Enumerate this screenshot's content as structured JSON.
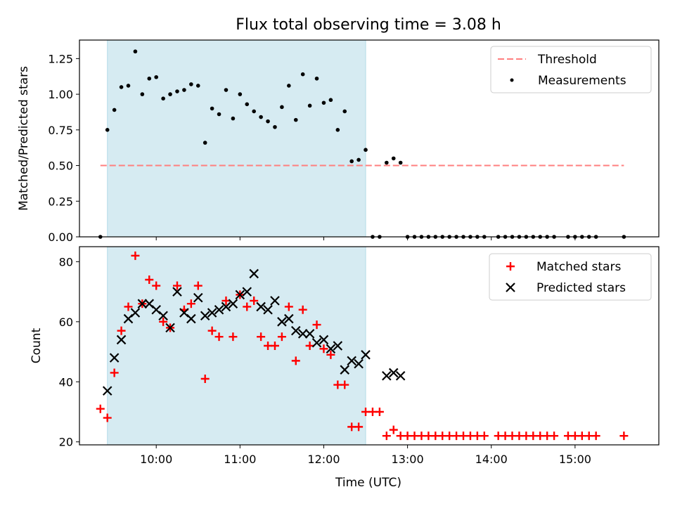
{
  "title": "Flux total observing time = 3.08 h",
  "colors": {
    "shade": "#add8e6",
    "threshold": "#ff7f7f",
    "measurement": "#000000",
    "matched": "#ff0000",
    "predicted": "#000000"
  },
  "chart_data": [
    {
      "type": "scatter",
      "ylabel": "Matched/Predicted stars",
      "ylim": [
        0,
        1.38
      ],
      "y_ticks": [
        "0.00",
        "0.25",
        "0.50",
        "0.75",
        "1.00",
        "1.25"
      ],
      "shaded_span": [
        "09:25",
        "12:30"
      ],
      "legend": {
        "placement": "top-right",
        "entries": [
          "Threshold",
          "Measurements"
        ]
      },
      "threshold": {
        "name": "Threshold",
        "value": 0.5,
        "x_range": [
          "09:20",
          "15:35"
        ]
      },
      "series": [
        {
          "name": "Measurements",
          "points": [
            [
              "09:20",
              0.0
            ],
            [
              "09:25",
              0.75
            ],
            [
              "09:30",
              0.89
            ],
            [
              "09:35",
              1.05
            ],
            [
              "09:40",
              1.06
            ],
            [
              "09:45",
              1.3
            ],
            [
              "09:50",
              1.0
            ],
            [
              "09:55",
              1.11
            ],
            [
              "10:00",
              1.12
            ],
            [
              "10:05",
              0.97
            ],
            [
              "10:10",
              1.0
            ],
            [
              "10:15",
              1.02
            ],
            [
              "10:20",
              1.03
            ],
            [
              "10:25",
              1.07
            ],
            [
              "10:30",
              1.06
            ],
            [
              "10:35",
              0.66
            ],
            [
              "10:40",
              0.9
            ],
            [
              "10:45",
              0.86
            ],
            [
              "10:50",
              1.03
            ],
            [
              "10:55",
              0.83
            ],
            [
              "11:00",
              1.0
            ],
            [
              "11:05",
              0.93
            ],
            [
              "11:10",
              0.88
            ],
            [
              "11:15",
              0.84
            ],
            [
              "11:20",
              0.81
            ],
            [
              "11:25",
              0.77
            ],
            [
              "11:30",
              0.91
            ],
            [
              "11:35",
              1.06
            ],
            [
              "11:40",
              0.82
            ],
            [
              "11:45",
              1.14
            ],
            [
              "11:50",
              0.92
            ],
            [
              "11:55",
              1.11
            ],
            [
              "12:00",
              0.94
            ],
            [
              "12:05",
              0.96
            ],
            [
              "12:10",
              0.75
            ],
            [
              "12:15",
              0.88
            ],
            [
              "12:20",
              0.53
            ],
            [
              "12:25",
              0.54
            ],
            [
              "12:30",
              0.61
            ],
            [
              "12:35",
              0.0
            ],
            [
              "12:40",
              0.0
            ],
            [
              "12:45",
              0.52
            ],
            [
              "12:50",
              0.55
            ],
            [
              "12:55",
              0.52
            ],
            [
              "13:00",
              0.0
            ],
            [
              "13:05",
              0.0
            ],
            [
              "13:10",
              0.0
            ],
            [
              "13:15",
              0.0
            ],
            [
              "13:20",
              0.0
            ],
            [
              "13:25",
              0.0
            ],
            [
              "13:30",
              0.0
            ],
            [
              "13:35",
              0.0
            ],
            [
              "13:40",
              0.0
            ],
            [
              "13:45",
              0.0
            ],
            [
              "13:50",
              0.0
            ],
            [
              "13:55",
              0.0
            ],
            [
              "14:05",
              0.0
            ],
            [
              "14:10",
              0.0
            ],
            [
              "14:15",
              0.0
            ],
            [
              "14:20",
              0.0
            ],
            [
              "14:25",
              0.0
            ],
            [
              "14:30",
              0.0
            ],
            [
              "14:35",
              0.0
            ],
            [
              "14:40",
              0.0
            ],
            [
              "14:45",
              0.0
            ],
            [
              "14:55",
              0.0
            ],
            [
              "15:00",
              0.0
            ],
            [
              "15:05",
              0.0
            ],
            [
              "15:10",
              0.0
            ],
            [
              "15:15",
              0.0
            ],
            [
              "15:35",
              0.0
            ]
          ]
        }
      ]
    },
    {
      "type": "scatter",
      "xlabel": "Time (UTC)",
      "ylabel": "Count",
      "ylim": [
        19,
        85
      ],
      "y_ticks": [
        "20",
        "40",
        "60",
        "80"
      ],
      "x_ticks": [
        "10:00",
        "11:00",
        "12:00",
        "13:00",
        "14:00",
        "15:00"
      ],
      "x_range": [
        "09:05",
        "16:00"
      ],
      "shaded_span": [
        "09:25",
        "12:30"
      ],
      "legend": {
        "placement": "top-right",
        "entries": [
          "Matched stars",
          "Predicted stars"
        ]
      },
      "series": [
        {
          "name": "Matched stars",
          "marker": "plus",
          "points": [
            [
              "09:20",
              31
            ],
            [
              "09:25",
              28
            ],
            [
              "09:30",
              43
            ],
            [
              "09:35",
              57
            ],
            [
              "09:40",
              65
            ],
            [
              "09:45",
              82
            ],
            [
              "09:50",
              66
            ],
            [
              "09:55",
              74
            ],
            [
              "10:00",
              72
            ],
            [
              "10:05",
              60
            ],
            [
              "10:10",
              58
            ],
            [
              "10:15",
              72
            ],
            [
              "10:20",
              64
            ],
            [
              "10:25",
              66
            ],
            [
              "10:30",
              72
            ],
            [
              "10:35",
              41
            ],
            [
              "10:40",
              57
            ],
            [
              "10:45",
              55
            ],
            [
              "10:50",
              67
            ],
            [
              "10:55",
              55
            ],
            [
              "11:00",
              69
            ],
            [
              "11:05",
              65
            ],
            [
              "11:10",
              67
            ],
            [
              "11:15",
              55
            ],
            [
              "11:20",
              52
            ],
            [
              "11:25",
              52
            ],
            [
              "11:30",
              55
            ],
            [
              "11:35",
              65
            ],
            [
              "11:40",
              47
            ],
            [
              "11:45",
              64
            ],
            [
              "11:50",
              52
            ],
            [
              "11:55",
              59
            ],
            [
              "12:00",
              51
            ],
            [
              "12:05",
              49
            ],
            [
              "12:10",
              39
            ],
            [
              "12:15",
              39
            ],
            [
              "12:20",
              25
            ],
            [
              "12:25",
              25
            ],
            [
              "12:30",
              30
            ],
            [
              "12:35",
              30
            ],
            [
              "12:40",
              30
            ],
            [
              "12:45",
              22
            ],
            [
              "12:50",
              24
            ],
            [
              "12:55",
              22
            ],
            [
              "13:00",
              22
            ],
            [
              "13:05",
              22
            ],
            [
              "13:10",
              22
            ],
            [
              "13:15",
              22
            ],
            [
              "13:20",
              22
            ],
            [
              "13:25",
              22
            ],
            [
              "13:30",
              22
            ],
            [
              "13:35",
              22
            ],
            [
              "13:40",
              22
            ],
            [
              "13:45",
              22
            ],
            [
              "13:50",
              22
            ],
            [
              "13:55",
              22
            ],
            [
              "14:05",
              22
            ],
            [
              "14:10",
              22
            ],
            [
              "14:15",
              22
            ],
            [
              "14:20",
              22
            ],
            [
              "14:25",
              22
            ],
            [
              "14:30",
              22
            ],
            [
              "14:35",
              22
            ],
            [
              "14:40",
              22
            ],
            [
              "14:45",
              22
            ],
            [
              "14:55",
              22
            ],
            [
              "15:00",
              22
            ],
            [
              "15:05",
              22
            ],
            [
              "15:10",
              22
            ],
            [
              "15:15",
              22
            ],
            [
              "15:35",
              22
            ]
          ]
        },
        {
          "name": "Predicted stars",
          "marker": "x",
          "points": [
            [
              "09:25",
              37
            ],
            [
              "09:30",
              48
            ],
            [
              "09:35",
              54
            ],
            [
              "09:40",
              61
            ],
            [
              "09:45",
              63
            ],
            [
              "09:50",
              66
            ],
            [
              "09:55",
              66
            ],
            [
              "10:00",
              64
            ],
            [
              "10:05",
              62
            ],
            [
              "10:10",
              58
            ],
            [
              "10:15",
              70
            ],
            [
              "10:20",
              63
            ],
            [
              "10:25",
              61
            ],
            [
              "10:30",
              68
            ],
            [
              "10:35",
              62
            ],
            [
              "10:40",
              63
            ],
            [
              "10:45",
              64
            ],
            [
              "10:50",
              65
            ],
            [
              "10:55",
              66
            ],
            [
              "11:00",
              69
            ],
            [
              "11:05",
              70
            ],
            [
              "11:10",
              76
            ],
            [
              "11:15",
              65
            ],
            [
              "11:20",
              64
            ],
            [
              "11:25",
              67
            ],
            [
              "11:30",
              60
            ],
            [
              "11:35",
              61
            ],
            [
              "11:40",
              57
            ],
            [
              "11:45",
              56
            ],
            [
              "11:50",
              56
            ],
            [
              "11:55",
              53
            ],
            [
              "12:00",
              54
            ],
            [
              "12:05",
              51
            ],
            [
              "12:10",
              52
            ],
            [
              "12:15",
              44
            ],
            [
              "12:20",
              47
            ],
            [
              "12:25",
              46
            ],
            [
              "12:30",
              49
            ],
            [
              "12:45",
              42
            ],
            [
              "12:50",
              43
            ],
            [
              "12:55",
              42
            ]
          ]
        }
      ]
    }
  ]
}
